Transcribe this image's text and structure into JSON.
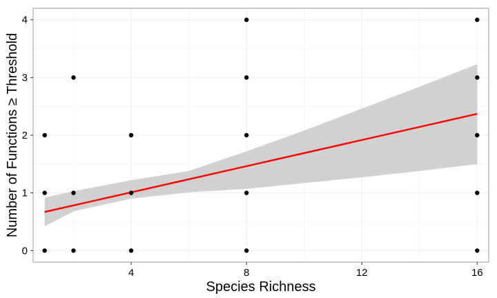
{
  "chart_data": {
    "type": "scatter",
    "xlabel": "Species Richness",
    "ylabel": "Number of Functions ≥ Threshold",
    "xlim": [
      0.6,
      16.4
    ],
    "ylim": [
      -0.2,
      4.2
    ],
    "x_ticks": [
      4,
      8,
      12,
      16
    ],
    "y_ticks": [
      0,
      1,
      2,
      3,
      4
    ],
    "grid": true,
    "points": [
      {
        "x": 1,
        "y": 0
      },
      {
        "x": 1,
        "y": 1
      },
      {
        "x": 1,
        "y": 2
      },
      {
        "x": 2,
        "y": 0
      },
      {
        "x": 2,
        "y": 1
      },
      {
        "x": 2,
        "y": 3
      },
      {
        "x": 4,
        "y": 0
      },
      {
        "x": 4,
        "y": 1
      },
      {
        "x": 4,
        "y": 2
      },
      {
        "x": 8,
        "y": 0
      },
      {
        "x": 8,
        "y": 1
      },
      {
        "x": 8,
        "y": 2
      },
      {
        "x": 8,
        "y": 3
      },
      {
        "x": 8,
        "y": 4
      },
      {
        "x": 16,
        "y": 0
      },
      {
        "x": 16,
        "y": 1
      },
      {
        "x": 16,
        "y": 2
      },
      {
        "x": 16,
        "y": 3
      },
      {
        "x": 16,
        "y": 4
      }
    ],
    "fit_line": {
      "x": [
        1,
        16
      ],
      "y": [
        0.67,
        2.37
      ]
    },
    "confidence_band": {
      "x": [
        1,
        2,
        4,
        6,
        8,
        10,
        12,
        14,
        16
      ],
      "lower": [
        0.42,
        0.68,
        0.9,
        1.01,
        1.07,
        1.17,
        1.27,
        1.38,
        1.5
      ],
      "upper": [
        0.92,
        1.03,
        1.22,
        1.38,
        1.72,
        2.08,
        2.46,
        2.84,
        3.23
      ]
    },
    "colors": {
      "points": "#000000",
      "fit_line": "#ff0000",
      "band": "#cccccc",
      "grid": "#f0f0f0",
      "panel_border": "#999999"
    }
  }
}
